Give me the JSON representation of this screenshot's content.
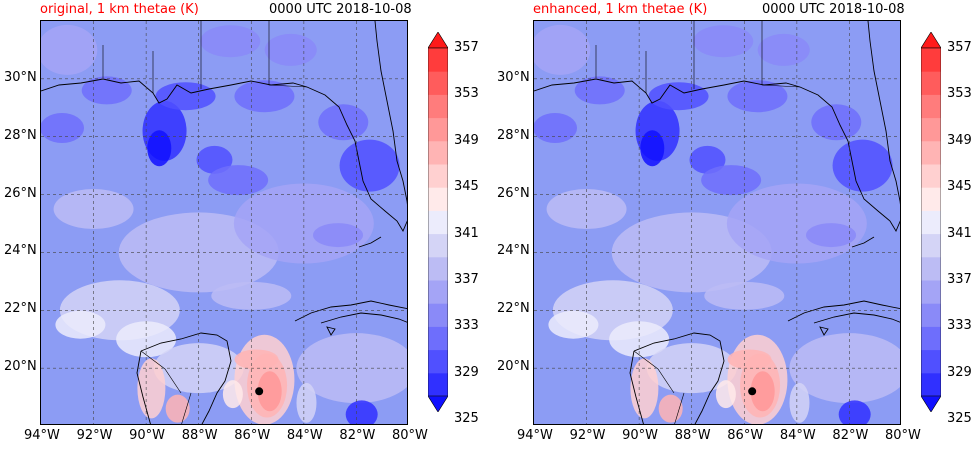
{
  "valid_time": "0000 UTC 2018-10-08",
  "panels": [
    {
      "id": "original",
      "title": "original, 1 km thetae (K)"
    },
    {
      "id": "enhanced",
      "title": "enhanced, 1 km thetae (K)"
    }
  ],
  "lat_ticks": [
    "30°N",
    "28°N",
    "26°N",
    "24°N",
    "22°N",
    "20°N"
  ],
  "lon_ticks": [
    "94°W",
    "92°W",
    "90°W",
    "88°W",
    "86°W",
    "84°W",
    "82°W",
    "80°W"
  ],
  "colorbar": {
    "tick_labels": [
      "357",
      "353",
      "349",
      "345",
      "341",
      "337",
      "333",
      "329",
      "325"
    ],
    "levels": [
      325,
      327,
      329,
      331,
      333,
      335,
      337,
      339,
      341,
      343,
      345,
      347,
      349,
      351,
      353,
      355,
      357,
      359
    ],
    "colors": [
      "#1010ff",
      "#3030ff",
      "#5050ff",
      "#6e6efc",
      "#8a8af8",
      "#a4a4f6",
      "#bcbcf4",
      "#d4d4f6",
      "#ececfc",
      "#ffeaea",
      "#ffd0d0",
      "#ffb4b4",
      "#ff9898",
      "#ff7c7c",
      "#ff5c5c",
      "#ff3c3c",
      "#ff1a1a"
    ],
    "extend": "both"
  },
  "storm_marker": {
    "lon": -85.7,
    "lat": 19.2
  },
  "map_extent": {
    "lon_min": -94,
    "lon_max": -80,
    "lat_min": 18,
    "lat_max": 32
  }
}
